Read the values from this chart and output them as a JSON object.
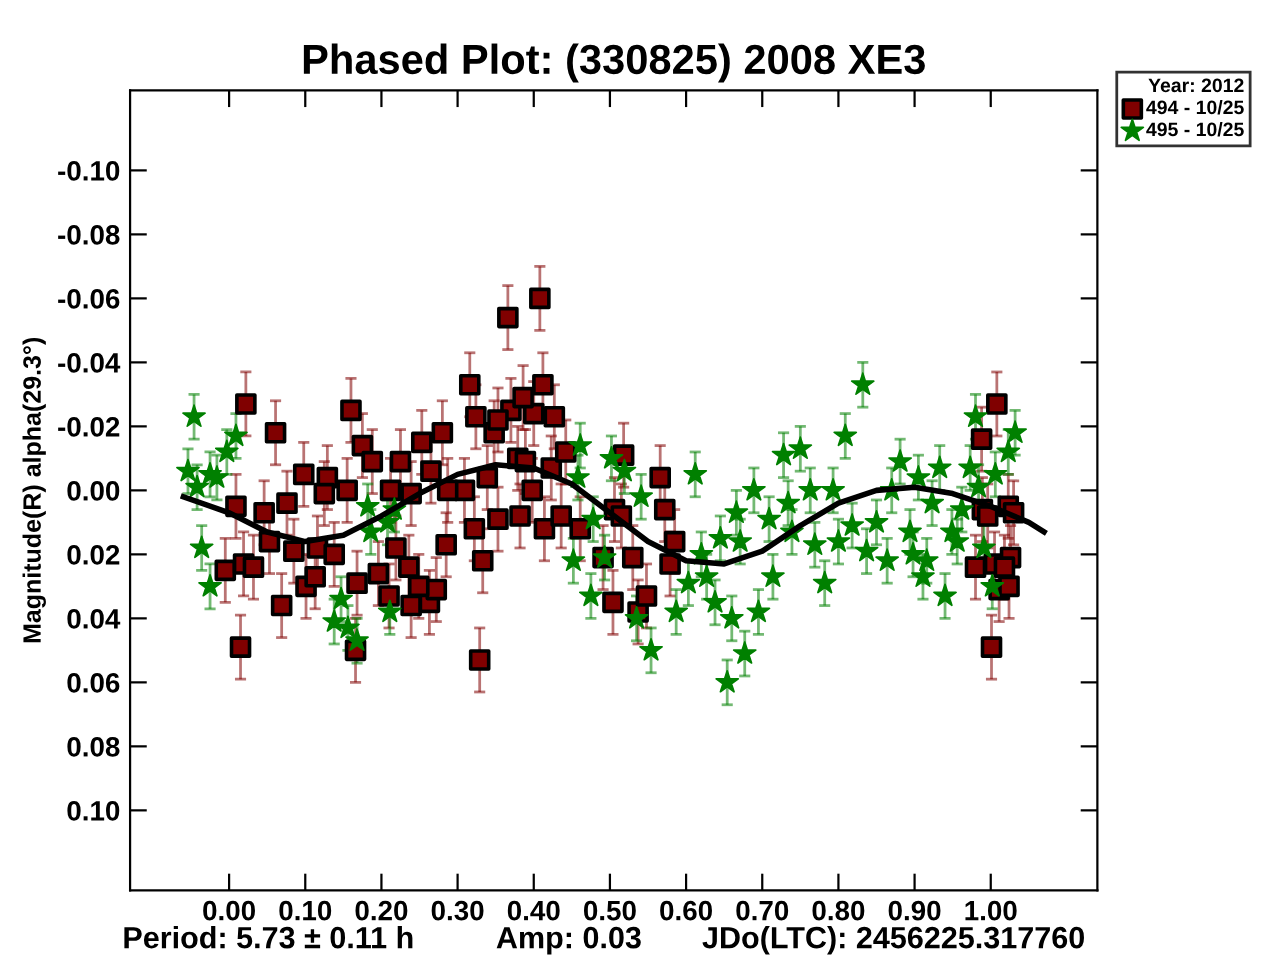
{
  "chart_data": {
    "type": "scatter",
    "title": "Phased Plot: (330825) 2008 XE3",
    "ylabel": "Magnitude(R) alpha(29.3°)",
    "legend_title": "Year: 2012",
    "legend": "top right",
    "grid": false,
    "annotations": [
      "Period: 5.73 ± 0.11 h",
      "Amp: 0.03",
      "JDo(LTC): 2456225.317760"
    ],
    "xlim": [
      -0.13,
      1.14
    ],
    "ylim": [
      0.125,
      -0.125
    ],
    "xticks": [
      {
        "value": 0,
        "label": "0.00"
      },
      {
        "value": 0.1,
        "label": "0.10"
      },
      {
        "value": 0.2,
        "label": "0.20"
      },
      {
        "value": 0.3,
        "label": "0.30"
      },
      {
        "value": 0.4,
        "label": "0.40"
      },
      {
        "value": 0.5,
        "label": "0.50"
      },
      {
        "value": 0.6,
        "label": "0.60"
      },
      {
        "value": 0.7,
        "label": "0.70"
      },
      {
        "value": 0.8,
        "label": "0.80"
      },
      {
        "value": 0.9,
        "label": "0.90"
      },
      {
        "value": 1.0,
        "label": "1.00"
      }
    ],
    "yticks": [
      {
        "value": -0.1,
        "label": "-0.10"
      },
      {
        "value": -0.08,
        "label": "-0.08"
      },
      {
        "value": -0.06,
        "label": "-0.06"
      },
      {
        "value": -0.04,
        "label": "-0.04"
      },
      {
        "value": -0.02,
        "label": "-0.02"
      },
      {
        "value": 0,
        "label": "0.00"
      },
      {
        "value": 0.02,
        "label": "0.02"
      },
      {
        "value": 0.04,
        "label": "0.04"
      },
      {
        "value": 0.06,
        "label": "0.06"
      },
      {
        "value": 0.08,
        "label": "0.08"
      },
      {
        "value": 0.1,
        "label": "0.10"
      }
    ],
    "series": [
      {
        "name": "494 - 10/25",
        "color": "#800000",
        "marker": "square",
        "x": [
          0.022,
          0.061,
          0.015,
          -0.005,
          0.019,
          0.032,
          0.16,
          0.175,
          0.188,
          0.098,
          0.129,
          0.069,
          0.101,
          0.113,
          0.168,
          0.196,
          0.166,
          0.21,
          0.239,
          0.263,
          0.272,
          0.249,
          0.225,
          0.253,
          0.28,
          0.316,
          0.324,
          0.366,
          0.408,
          0.412,
          0.4,
          0.427,
          0.348,
          0.37,
          0.386,
          0.353,
          0.329,
          0.333,
          0.322,
          0.353,
          0.382,
          0.414,
          0.436,
          0.461,
          0.504,
          0.506,
          0.309,
          0.287,
          0.265,
          0.239,
          0.212,
          0.155,
          0.125,
          0.076,
          0.046,
          0.009,
          0.053,
          0.085,
          0.116,
          0.138,
          0.219,
          0.236,
          0.285,
          0.339,
          0.379,
          0.389,
          0.398,
          0.423,
          0.442,
          0.518,
          0.566,
          0.572,
          0.53,
          0.579,
          0.537,
          0.548,
          0.491,
          0.585,
          0.515,
          0.988,
          1.008,
          0.989,
          1.023,
          1.03,
          0.996,
          0.98,
          1.005,
          1.026,
          1.018,
          1.011,
          1.024,
          1.001
        ],
        "values": [
          -0.027,
          -0.018,
          0.049,
          0.025,
          0.023,
          0.024,
          -0.025,
          -0.014,
          -0.009,
          -0.005,
          -0.004,
          0.036,
          0.03,
          0.027,
          0.029,
          0.026,
          0.05,
          0.033,
          0.036,
          0.035,
          0.031,
          0.03,
          -0.009,
          -0.015,
          -0.018,
          -0.033,
          -0.023,
          -0.054,
          -0.06,
          -0.033,
          -0.024,
          -0.023,
          -0.018,
          -0.025,
          -0.029,
          -0.022,
          0.053,
          0.022,
          0.012,
          0.009,
          0.008,
          0.012,
          0.008,
          0.012,
          0.035,
          0.006,
          0.0,
          0.0,
          -0.006,
          0.001,
          0.0,
          0.0,
          0.001,
          0.004,
          0.007,
          0.005,
          0.016,
          0.019,
          0.018,
          0.02,
          0.018,
          0.024,
          0.017,
          -0.004,
          -0.01,
          -0.009,
          0.0,
          -0.007,
          -0.012,
          -0.011,
          -0.004,
          0.006,
          0.021,
          0.023,
          0.038,
          0.033,
          0.021,
          0.016,
          0.008,
          -0.016,
          -0.027,
          0.006,
          0.005,
          0.007,
          0.008,
          0.024,
          0.023,
          0.021,
          0.024,
          0.031,
          0.03,
          0.049
        ],
        "errors": [
          0.01,
          0.01,
          0.01,
          0.01,
          0.01,
          0.01,
          0.01,
          0.01,
          0.01,
          0.01,
          0.01,
          0.01,
          0.01,
          0.01,
          0.01,
          0.01,
          0.01,
          0.01,
          0.01,
          0.01,
          0.01,
          0.01,
          0.01,
          0.01,
          0.01,
          0.01,
          0.01,
          0.01,
          0.01,
          0.01,
          0.01,
          0.01,
          0.01,
          0.01,
          0.01,
          0.01,
          0.01,
          0.01,
          0.01,
          0.01,
          0.01,
          0.01,
          0.01,
          0.01,
          0.01,
          0.01,
          0.01,
          0.01,
          0.01,
          0.01,
          0.01,
          0.01,
          0.01,
          0.01,
          0.01,
          0.01,
          0.01,
          0.01,
          0.01,
          0.01,
          0.01,
          0.01,
          0.01,
          0.01,
          0.01,
          0.01,
          0.01,
          0.01,
          0.01,
          0.01,
          0.01,
          0.01,
          0.01,
          0.01,
          0.01,
          0.01,
          0.01,
          0.01,
          0.01,
          0.01,
          0.01,
          0.01,
          0.01,
          0.01,
          0.01,
          0.01,
          0.01,
          0.01,
          0.01,
          0.01,
          0.01,
          0.01
        ]
      },
      {
        "name": "495 - 10/25",
        "color": "#008000",
        "marker": "star",
        "x": [
          -0.046,
          -0.054,
          -0.042,
          -0.025,
          -0.016,
          -0.036,
          -0.025,
          -0.003,
          0.009,
          0.138,
          0.156,
          0.168,
          0.147,
          0.182,
          0.186,
          0.208,
          0.211,
          0.217,
          0.461,
          0.452,
          0.475,
          0.478,
          0.502,
          0.458,
          0.493,
          0.519,
          0.541,
          0.554,
          0.535,
          0.587,
          0.603,
          0.612,
          0.62,
          0.627,
          0.638,
          0.645,
          0.654,
          0.66,
          0.666,
          0.671,
          0.677,
          0.689,
          0.695,
          0.709,
          0.714,
          0.728,
          0.734,
          0.739,
          0.75,
          0.763,
          0.769,
          0.782,
          0.793,
          0.8,
          0.809,
          0.818,
          0.832,
          0.837,
          0.85,
          0.864,
          0.87,
          0.881,
          0.894,
          0.898,
          0.905,
          0.911,
          0.916,
          0.923,
          0.933,
          0.94,
          0.949,
          0.956,
          0.962,
          0.973,
          0.98,
          0.984,
          0.991,
          1.002,
          1.006,
          1.023,
          1.032
        ],
        "values": [
          -0.023,
          -0.006,
          -0.001,
          -0.005,
          -0.004,
          0.018,
          0.03,
          -0.012,
          -0.017,
          0.041,
          0.043,
          0.047,
          0.034,
          0.005,
          0.013,
          0.01,
          0.038,
          0.006,
          -0.014,
          0.022,
          0.033,
          0.009,
          -0.01,
          -0.004,
          0.021,
          -0.006,
          0.002,
          0.05,
          0.04,
          0.038,
          0.029,
          -0.005,
          0.02,
          0.027,
          0.035,
          0.015,
          0.06,
          0.04,
          0.007,
          0.016,
          0.051,
          0.0,
          0.038,
          0.009,
          0.027,
          -0.011,
          0.004,
          0.013,
          -0.013,
          0.0,
          0.017,
          0.029,
          0.0,
          0.016,
          -0.017,
          0.011,
          -0.033,
          0.019,
          0.01,
          0.022,
          0.0,
          -0.009,
          0.013,
          0.02,
          -0.004,
          0.027,
          0.022,
          0.004,
          -0.007,
          0.033,
          0.013,
          0.016,
          0.006,
          -0.007,
          -0.023,
          -0.001,
          0.018,
          0.03,
          -0.005,
          -0.012,
          -0.018
        ],
        "errors": [
          0.007,
          0.007,
          0.007,
          0.007,
          0.007,
          0.007,
          0.007,
          0.007,
          0.007,
          0.007,
          0.007,
          0.007,
          0.007,
          0.007,
          0.007,
          0.007,
          0.007,
          0.007,
          0.007,
          0.007,
          0.007,
          0.007,
          0.007,
          0.007,
          0.007,
          0.007,
          0.007,
          0.007,
          0.007,
          0.007,
          0.007,
          0.007,
          0.007,
          0.007,
          0.007,
          0.007,
          0.007,
          0.007,
          0.007,
          0.007,
          0.007,
          0.007,
          0.007,
          0.007,
          0.007,
          0.007,
          0.007,
          0.007,
          0.007,
          0.007,
          0.007,
          0.007,
          0.007,
          0.007,
          0.007,
          0.007,
          0.007,
          0.007,
          0.007,
          0.007,
          0.007,
          0.007,
          0.007,
          0.007,
          0.007,
          0.007,
          0.007,
          0.007,
          0.007,
          0.007,
          0.007,
          0.007,
          0.007,
          0.007,
          0.007,
          0.007,
          0.007,
          0.007,
          0.007,
          0.007,
          0.007
        ]
      },
      {
        "type": "line",
        "color": "#000000",
        "marker": "none",
        "line_style": "solid",
        "x": [
          -0.06,
          0.0,
          0.05,
          0.1,
          0.15,
          0.2,
          0.25,
          0.3,
          0.35,
          0.4,
          0.45,
          0.5,
          0.55,
          0.6,
          0.65,
          0.7,
          0.75,
          0.8,
          0.85,
          0.9,
          0.95,
          1.0,
          1.05,
          1.07
        ],
        "values": [
          0.002,
          0.007,
          0.013,
          0.016,
          0.014,
          0.008,
          0.001,
          -0.005,
          -0.008,
          -0.007,
          -0.002,
          0.007,
          0.016,
          0.022,
          0.023,
          0.019,
          0.011,
          0.004,
          0.0,
          -0.001,
          0.001,
          0.005,
          0.01,
          0.013
        ]
      }
    ]
  }
}
